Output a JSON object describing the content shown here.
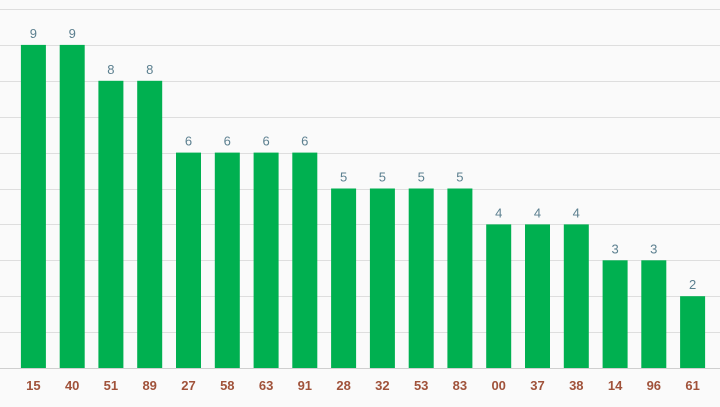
{
  "chart_data": {
    "type": "bar",
    "title": "",
    "xlabel": "",
    "ylabel": "",
    "categories": [
      "15",
      "40",
      "51",
      "89",
      "27",
      "58",
      "63",
      "91",
      "28",
      "32",
      "53",
      "83",
      "00",
      "37",
      "38",
      "14",
      "96",
      "61"
    ],
    "values": [
      9,
      9,
      8,
      8,
      6,
      6,
      6,
      6,
      5,
      5,
      5,
      5,
      4,
      4,
      4,
      3,
      3,
      2
    ],
    "ylim": [
      0,
      10
    ],
    "grid": true,
    "legend": "none",
    "colors": {
      "bar": "#00b050",
      "data_label": "#5b7f8f",
      "tick_label": "#a0523a",
      "grid": "#dedede",
      "background": "#fafafa"
    }
  }
}
